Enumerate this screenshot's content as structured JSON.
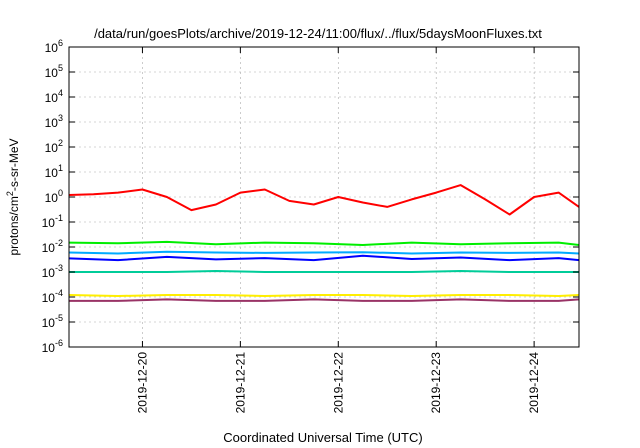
{
  "chart_data": {
    "type": "line",
    "title": "/data/run/goesPlots/archive/2019-12-24/11:00/flux/../flux/5daysMoonFluxes.txt",
    "xlabel": "Coordinated Universal Time (UTC)",
    "ylabel": {
      "base": "protons/cm",
      "sup": "2",
      "rest": "-s-sr-MeV"
    },
    "yscale": "log",
    "ylim": [
      1e-06,
      1000000.0
    ],
    "y_ticks": [
      {
        "value": 1000000.0,
        "base": "10",
        "exp": "6"
      },
      {
        "value": 100000.0,
        "base": "10",
        "exp": "5"
      },
      {
        "value": 10000.0,
        "base": "10",
        "exp": "4"
      },
      {
        "value": 1000.0,
        "base": "10",
        "exp": "3"
      },
      {
        "value": 100.0,
        "base": "10",
        "exp": "2"
      },
      {
        "value": 10.0,
        "base": "10",
        "exp": "1"
      },
      {
        "value": 1.0,
        "base": "10",
        "exp": "0"
      },
      {
        "value": 0.1,
        "base": "10",
        "exp": "-1"
      },
      {
        "value": 0.01,
        "base": "10",
        "exp": "-2"
      },
      {
        "value": 0.001,
        "base": "10",
        "exp": "-3"
      },
      {
        "value": 0.0001,
        "base": "10",
        "exp": "-4"
      },
      {
        "value": 1e-05,
        "base": "10",
        "exp": "-5"
      },
      {
        "value": 1e-06,
        "base": "10",
        "exp": "-6"
      }
    ],
    "xlim": [
      "2019-12-19 06:00",
      "2019-12-24 11:00"
    ],
    "x_ticks": [
      "2019-12-20",
      "2019-12-21",
      "2019-12-22",
      "2019-12-23",
      "2019-12-24"
    ],
    "grid": true,
    "legend": "none",
    "series": [
      {
        "color": "#ff0000",
        "x": [
          "2019-12-19 06:00",
          "2019-12-19 12:00",
          "2019-12-19 18:00",
          "2019-12-20 00:00",
          "2019-12-20 06:00",
          "2019-12-20 12:00",
          "2019-12-20 18:00",
          "2019-12-21 00:00",
          "2019-12-21 06:00",
          "2019-12-21 12:00",
          "2019-12-21 18:00",
          "2019-12-22 00:00",
          "2019-12-22 06:00",
          "2019-12-22 12:00",
          "2019-12-22 18:00",
          "2019-12-23 00:00",
          "2019-12-23 06:00",
          "2019-12-23 12:00",
          "2019-12-23 18:00",
          "2019-12-24 00:00",
          "2019-12-24 06:00",
          "2019-12-24 11:00"
        ],
        "values": [
          1.2,
          1.3,
          1.5,
          2.0,
          1.0,
          0.3,
          0.5,
          1.5,
          2.0,
          0.7,
          0.5,
          1.0,
          0.6,
          0.4,
          0.8,
          1.5,
          3.0,
          0.8,
          0.2,
          1.0,
          1.5,
          0.4
        ]
      },
      {
        "color": "#00ee00",
        "x": [
          "2019-12-19 06:00",
          "2019-12-19 18:00",
          "2019-12-20 06:00",
          "2019-12-20 18:00",
          "2019-12-21 06:00",
          "2019-12-21 18:00",
          "2019-12-22 06:00",
          "2019-12-22 18:00",
          "2019-12-23 06:00",
          "2019-12-23 18:00",
          "2019-12-24 06:00",
          "2019-12-24 11:00"
        ],
        "values": [
          0.015,
          0.014,
          0.016,
          0.013,
          0.015,
          0.014,
          0.012,
          0.015,
          0.013,
          0.014,
          0.015,
          0.012
        ]
      },
      {
        "color": "#00aaff",
        "x": [
          "2019-12-19 06:00",
          "2019-12-19 18:00",
          "2019-12-20 06:00",
          "2019-12-20 18:00",
          "2019-12-21 06:00",
          "2019-12-21 18:00",
          "2019-12-22 06:00",
          "2019-12-22 18:00",
          "2019-12-23 06:00",
          "2019-12-23 18:00",
          "2019-12-24 06:00",
          "2019-12-24 11:00"
        ],
        "values": [
          0.006,
          0.0055,
          0.0065,
          0.006,
          0.0058,
          0.006,
          0.0062,
          0.0055,
          0.006,
          0.0058,
          0.006,
          0.0055
        ]
      },
      {
        "color": "#0000ff",
        "x": [
          "2019-12-19 06:00",
          "2019-12-19 18:00",
          "2019-12-20 06:00",
          "2019-12-20 18:00",
          "2019-12-21 06:00",
          "2019-12-21 18:00",
          "2019-12-22 06:00",
          "2019-12-22 18:00",
          "2019-12-23 06:00",
          "2019-12-23 18:00",
          "2019-12-24 06:00",
          "2019-12-24 11:00"
        ],
        "values": [
          0.0035,
          0.003,
          0.004,
          0.0032,
          0.0036,
          0.003,
          0.0045,
          0.0033,
          0.0038,
          0.003,
          0.0036,
          0.003
        ]
      },
      {
        "color": "#00cc99",
        "x": [
          "2019-12-19 06:00",
          "2019-12-19 18:00",
          "2019-12-20 06:00",
          "2019-12-20 18:00",
          "2019-12-21 06:00",
          "2019-12-21 18:00",
          "2019-12-22 06:00",
          "2019-12-22 18:00",
          "2019-12-23 06:00",
          "2019-12-23 18:00",
          "2019-12-24 06:00",
          "2019-12-24 11:00"
        ],
        "values": [
          0.001,
          0.001,
          0.001,
          0.0011,
          0.001,
          0.001,
          0.001,
          0.001,
          0.0011,
          0.001,
          0.001,
          0.001
        ]
      },
      {
        "color": "#ffee00",
        "x": [
          "2019-12-19 06:00",
          "2019-12-19 18:00",
          "2019-12-20 06:00",
          "2019-12-20 18:00",
          "2019-12-21 06:00",
          "2019-12-21 18:00",
          "2019-12-22 06:00",
          "2019-12-22 18:00",
          "2019-12-23 06:00",
          "2019-12-23 18:00",
          "2019-12-24 06:00",
          "2019-12-24 11:00"
        ],
        "values": [
          0.00012,
          0.00011,
          0.00012,
          0.00012,
          0.00011,
          0.00012,
          0.00012,
          0.00011,
          0.00012,
          0.00012,
          0.00011,
          0.00012
        ]
      },
      {
        "color": "#993366",
        "x": [
          "2019-12-19 06:00",
          "2019-12-19 18:00",
          "2019-12-20 06:00",
          "2019-12-20 18:00",
          "2019-12-21 06:00",
          "2019-12-21 18:00",
          "2019-12-22 06:00",
          "2019-12-22 18:00",
          "2019-12-23 06:00",
          "2019-12-23 18:00",
          "2019-12-24 06:00",
          "2019-12-24 11:00"
        ],
        "values": [
          7e-05,
          7e-05,
          8e-05,
          7e-05,
          7e-05,
          8e-05,
          7e-05,
          7e-05,
          8e-05,
          7e-05,
          7e-05,
          8e-05
        ]
      }
    ]
  }
}
